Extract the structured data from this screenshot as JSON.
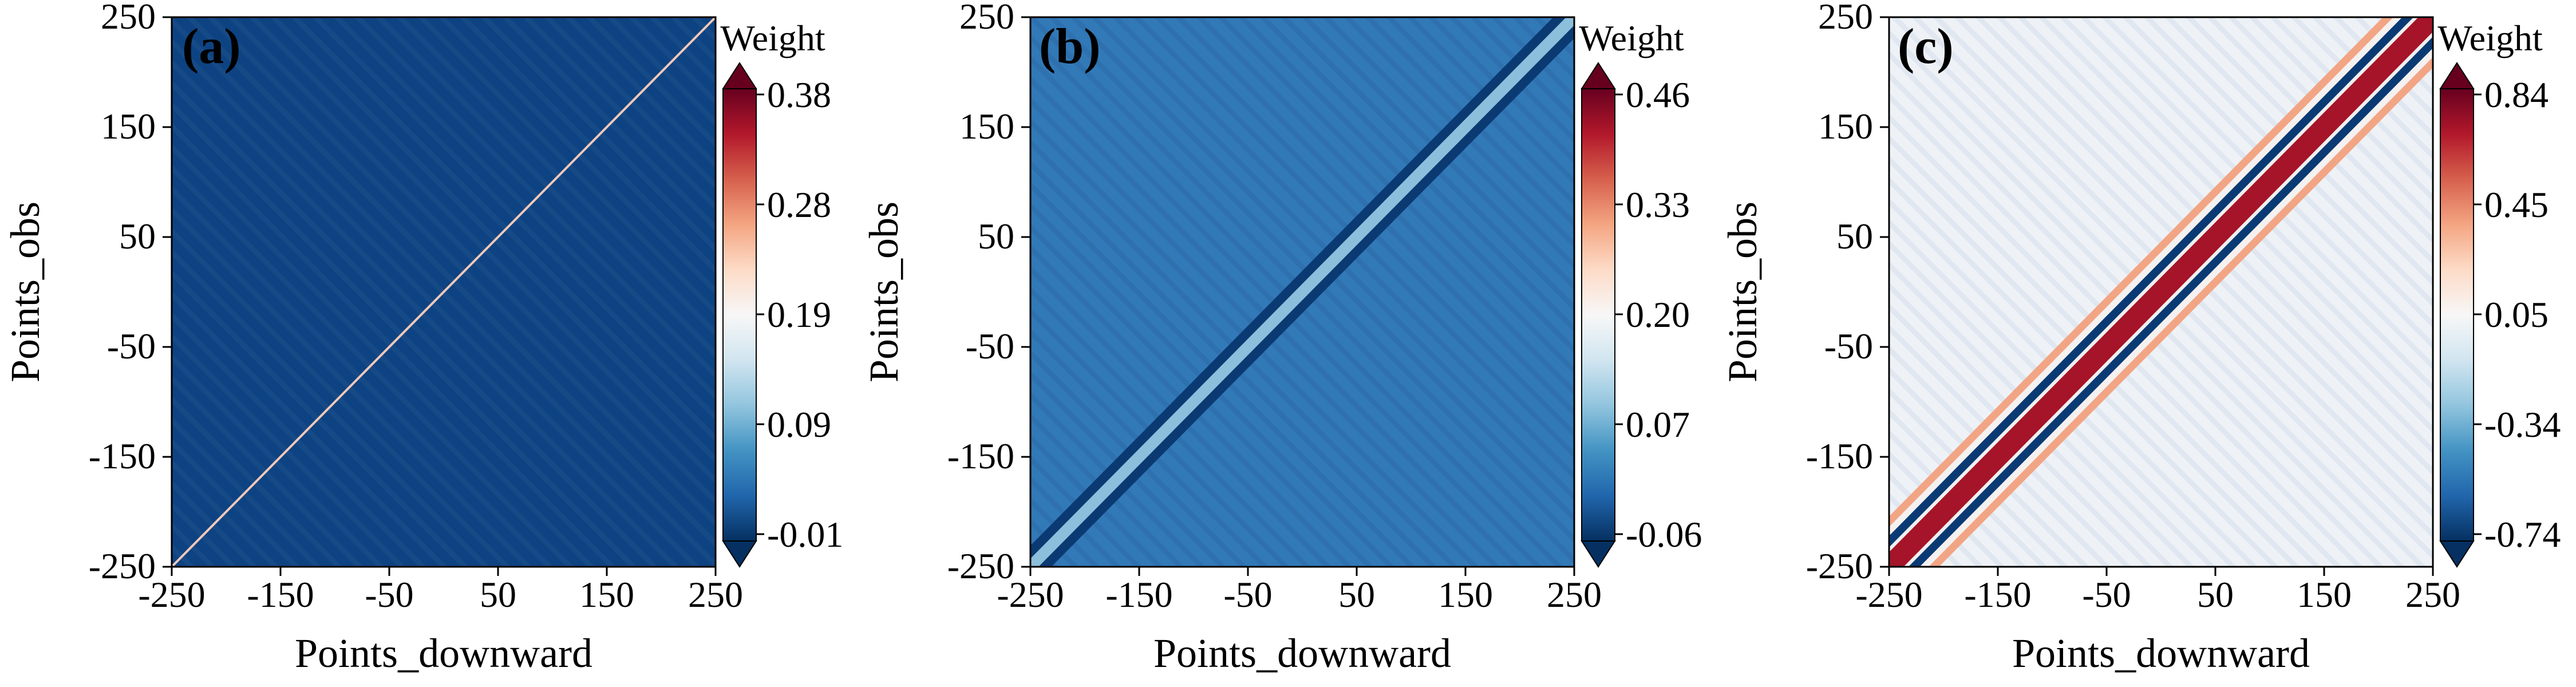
{
  "colors": {
    "cmap_stops": [
      "#053061",
      "#2166ac",
      "#4393c3",
      "#92c5de",
      "#d1e5f0",
      "#f7f7f7",
      "#fddbc7",
      "#f4a582",
      "#d6604d",
      "#b2182b",
      "#67001f"
    ],
    "axis": "#000000"
  },
  "chart_data": [
    {
      "type": "heatmap",
      "panel_label": "(a)",
      "xlabel": "Points_downward",
      "ylabel": "Points_obs",
      "x_ticks": [
        "-250",
        "-150",
        "-50",
        "50",
        "150",
        "250"
      ],
      "y_ticks": [
        "-250",
        "-150",
        "-50",
        "50",
        "150",
        "250"
      ],
      "xlim": [
        -250,
        250
      ],
      "ylim": [
        -250,
        250
      ],
      "colorbar": {
        "label": "Weight",
        "range": [
          -0.01,
          0.38
        ],
        "ticks": [
          "0.38",
          "0.28",
          "0.19",
          "0.09",
          "-0.01"
        ],
        "extend": "both"
      },
      "background_value": 0.0,
      "diagonal_peak": 0.38,
      "diagonal_width": 1.2
    },
    {
      "type": "heatmap",
      "panel_label": "(b)",
      "xlabel": "Points_downward",
      "ylabel": "Points_obs",
      "x_ticks": [
        "-250",
        "-150",
        "-50",
        "50",
        "150",
        "250"
      ],
      "y_ticks": [
        "-250",
        "-150",
        "-50",
        "50",
        "150",
        "250"
      ],
      "xlim": [
        -250,
        250
      ],
      "ylim": [
        -250,
        250
      ],
      "colorbar": {
        "label": "Weight",
        "range": [
          -0.06,
          0.46
        ],
        "ticks": [
          "0.46",
          "0.33",
          "0.20",
          "0.07",
          "-0.06"
        ],
        "extend": "both"
      },
      "background_value": 0.02,
      "diagonal_peak": 0.12,
      "side_lobe_value": -0.05,
      "diagonal_width": 8
    },
    {
      "type": "heatmap",
      "panel_label": "(c)",
      "xlabel": "Points_downward",
      "ylabel": "Points_obs",
      "x_ticks": [
        "-250",
        "-150",
        "-50",
        "50",
        "150",
        "250"
      ],
      "y_ticks": [
        "-250",
        "-150",
        "-50",
        "50",
        "150",
        "250"
      ],
      "xlim": [
        -250,
        250
      ],
      "ylim": [
        -250,
        250
      ],
      "colorbar": {
        "label": "Weight",
        "range": [
          -0.74,
          0.84
        ],
        "ticks": [
          "0.84",
          "0.45",
          "0.05",
          "-0.34",
          "-0.74"
        ],
        "extend": "both"
      },
      "background_value": 0.05,
      "diagonal_peak": 0.84,
      "side_lobe_value": -0.74,
      "outer_lobe_value": 0.3,
      "diagonal_width": 6
    }
  ]
}
